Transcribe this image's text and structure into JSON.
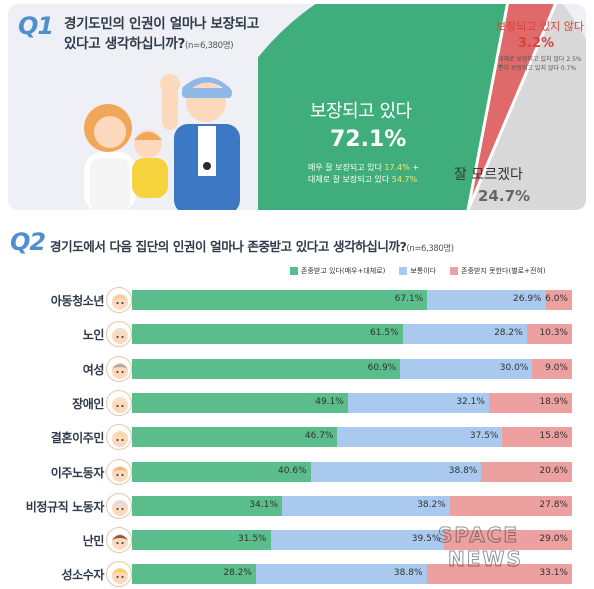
{
  "q1": {
    "num": "Q1",
    "title": "경기도민의 인권이 얼마나 보장되고 있다고 생각하십니까?",
    "n": "(n=6,380명)",
    "positive": {
      "label": "보장되고 있다",
      "pct": "72.1%",
      "sub1_prefix": "매우 잘 보장되고 있다 ",
      "sub1_value": "17.4%",
      "sub1_suffix": " +",
      "sub2_prefix": "대체로 잘 보장되고 있다 ",
      "sub2_value": "54.7%"
    },
    "unknown": {
      "label": "잘 모르겠다",
      "pct": "24.7%"
    },
    "negative": {
      "label": "보장되고 있지 않다",
      "pct": "3.2%",
      "sub1": "대체로 보장되고 있지 않다 2.5% +",
      "sub2": "전혀 보장되고 있지 않다 0.7%"
    },
    "colors": {
      "positive": "#3fae7c",
      "unknown": "#d9d9d9",
      "negative": "#e06a6a"
    }
  },
  "q2": {
    "num": "Q2",
    "title": "경기도에서 다음 집단의 인권이 얼마나 존중받고 있다고 생각하십니까?",
    "n": "(n=6,380명)"
  },
  "chart_data": {
    "type": "bar",
    "orientation": "horizontal-stacked",
    "categories": [
      "아동청소년",
      "노인",
      "여성",
      "장애인",
      "결혼이주민",
      "이주노동자",
      "비정규직 노동자",
      "난민",
      "성소수자"
    ],
    "series": [
      {
        "name": "존중받고 있다(매우+대체로)",
        "color": "#5bbd8b",
        "values": [
          67.1,
          61.5,
          60.9,
          49.1,
          46.7,
          40.6,
          34.1,
          31.5,
          28.2
        ]
      },
      {
        "name": "보통이다",
        "color": "#a9c9ee",
        "values": [
          26.9,
          28.2,
          30.0,
          32.1,
          37.5,
          38.8,
          38.2,
          39.5,
          38.8
        ]
      },
      {
        "name": "존중받지 못한다(별로+전혀)",
        "color": "#eca0a0",
        "values": [
          6.0,
          10.3,
          9.0,
          18.9,
          15.8,
          20.6,
          27.8,
          29.0,
          33.1
        ]
      }
    ],
    "labels": [
      [
        "67.1%",
        "26.9%",
        "6.0%"
      ],
      [
        "61.5%",
        "28.2%",
        "10.3%"
      ],
      [
        "60.9%",
        "30.0%",
        "9.0%"
      ],
      [
        "49.1%",
        "32.1%",
        "18.9%"
      ],
      [
        "46.7%",
        "37.5%",
        "15.8%"
      ],
      [
        "40.6%",
        "38.8%",
        "20.6%"
      ],
      [
        "34.1%",
        "38.2%",
        "27.8%"
      ],
      [
        "31.5%",
        "39.5%",
        "29.0%"
      ],
      [
        "28.2%",
        "38.8%",
        "33.1%"
      ]
    ],
    "xlim": [
      0,
      100
    ],
    "legend": "top-right"
  },
  "watermark": {
    "line1": "SPACE",
    "line2": "NEWS"
  }
}
